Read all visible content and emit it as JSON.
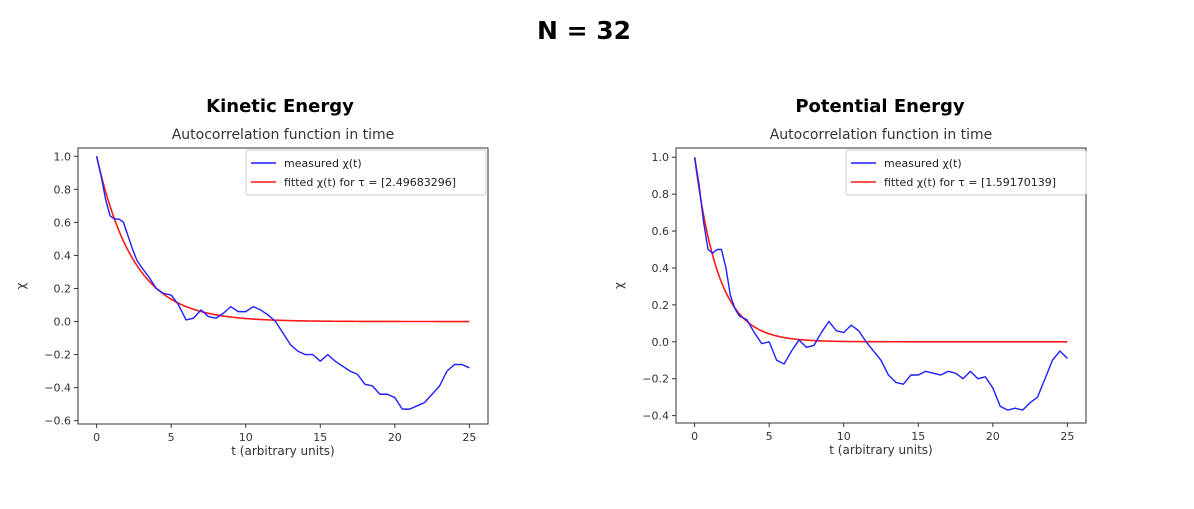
{
  "page": {
    "title": "N = 32",
    "panel_titles": [
      "Kinetic Energy",
      "Potential Energy"
    ]
  },
  "chart_data": [
    {
      "type": "line",
      "title": "Autocorrelation function in time",
      "xlabel": "t (arbitrary units)",
      "ylabel": "χ",
      "xlim": [
        -1.25,
        26.25
      ],
      "ylim": [
        -0.62,
        1.05
      ],
      "xticks": [
        0,
        5,
        10,
        15,
        20,
        25
      ],
      "yticks": [
        1.0,
        0.8,
        0.6,
        0.4,
        0.2,
        0.0,
        -0.2,
        -0.4,
        -0.6
      ],
      "ytick_labels": [
        "1.0",
        "0.8",
        "0.6",
        "0.4",
        "0.2",
        "0.0",
        "−0.2",
        "−0.4",
        "−0.6"
      ],
      "grid": false,
      "legend": "top-right",
      "series": [
        {
          "name": "measured χ(t)",
          "color": "#1f1fff",
          "x": [
            0,
            0.3,
            0.6,
            0.9,
            1.2,
            1.5,
            1.8,
            2.1,
            2.4,
            2.7,
            3.0,
            3.5,
            4.0,
            4.5,
            5.0,
            5.5,
            6.0,
            6.5,
            7.0,
            7.5,
            8.0,
            8.5,
            9.0,
            9.5,
            10.0,
            10.5,
            11.0,
            11.5,
            12.0,
            12.5,
            13.0,
            13.5,
            14.0,
            14.5,
            15.0,
            15.5,
            16.0,
            16.5,
            17.0,
            17.5,
            18.0,
            18.5,
            19.0,
            19.5,
            20.0,
            20.5,
            21.0,
            21.5,
            22.0,
            22.5,
            23.0,
            23.5,
            24.0,
            24.5,
            25.0
          ],
          "y": [
            1.0,
            0.88,
            0.74,
            0.64,
            0.62,
            0.62,
            0.6,
            0.52,
            0.44,
            0.37,
            0.33,
            0.27,
            0.2,
            0.17,
            0.16,
            0.1,
            0.01,
            0.02,
            0.07,
            0.03,
            0.02,
            0.05,
            0.09,
            0.06,
            0.06,
            0.09,
            0.07,
            0.04,
            0.0,
            -0.07,
            -0.14,
            -0.18,
            -0.2,
            -0.2,
            -0.24,
            -0.2,
            -0.24,
            -0.27,
            -0.3,
            -0.32,
            -0.38,
            -0.39,
            -0.44,
            -0.44,
            -0.46,
            -0.53,
            -0.53,
            -0.51,
            -0.49,
            -0.44,
            -0.39,
            -0.3,
            -0.26,
            -0.26,
            -0.28
          ]
        },
        {
          "name": "fitted χ(t) for τ = [2.49683296]",
          "color": "#ff1a1a",
          "fit_tau": 2.49683296,
          "x_range": [
            0,
            25
          ]
        }
      ]
    },
    {
      "type": "line",
      "title": "Autocorrelation function in time",
      "xlabel": "t (arbitrary units)",
      "ylabel": "χ",
      "xlim": [
        -1.25,
        26.25
      ],
      "ylim": [
        -0.44,
        1.05
      ],
      "xticks": [
        0,
        5,
        10,
        15,
        20,
        25
      ],
      "yticks": [
        1.0,
        0.8,
        0.6,
        0.4,
        0.2,
        0.0,
        -0.2,
        -0.4
      ],
      "ytick_labels": [
        "1.0",
        "0.8",
        "0.6",
        "0.4",
        "0.2",
        "0.0",
        "−0.2",
        "−0.4"
      ],
      "grid": false,
      "legend": "top-right",
      "series": [
        {
          "name": "measured χ(t)",
          "color": "#1f1fff",
          "x": [
            0,
            0.3,
            0.6,
            0.9,
            1.2,
            1.5,
            1.8,
            2.1,
            2.4,
            2.7,
            3.0,
            3.5,
            4.0,
            4.5,
            5.0,
            5.5,
            6.0,
            6.5,
            7.0,
            7.5,
            8.0,
            8.5,
            9.0,
            9.5,
            10.0,
            10.5,
            11.0,
            11.5,
            12.0,
            12.5,
            13.0,
            13.5,
            14.0,
            14.5,
            15.0,
            15.5,
            16.0,
            16.5,
            17.0,
            17.5,
            18.0,
            18.5,
            19.0,
            19.5,
            20.0,
            20.5,
            21.0,
            21.5,
            22.0,
            22.5,
            23.0,
            23.5,
            24.0,
            24.5,
            25.0
          ],
          "y": [
            1.0,
            0.85,
            0.65,
            0.5,
            0.48,
            0.5,
            0.5,
            0.4,
            0.25,
            0.18,
            0.14,
            0.12,
            0.05,
            -0.01,
            0.0,
            -0.1,
            -0.12,
            -0.05,
            0.01,
            -0.03,
            -0.02,
            0.05,
            0.11,
            0.06,
            0.05,
            0.09,
            0.06,
            0.0,
            -0.05,
            -0.1,
            -0.18,
            -0.22,
            -0.23,
            -0.18,
            -0.18,
            -0.16,
            -0.17,
            -0.18,
            -0.16,
            -0.17,
            -0.2,
            -0.16,
            -0.2,
            -0.19,
            -0.25,
            -0.35,
            -0.37,
            -0.36,
            -0.37,
            -0.33,
            -0.3,
            -0.2,
            -0.1,
            -0.05,
            -0.09
          ]
        },
        {
          "name": "fitted χ(t) for τ = [1.59170139]",
          "color": "#ff1a1a",
          "fit_tau": 1.59170139,
          "x_range": [
            0,
            25
          ]
        }
      ]
    }
  ]
}
